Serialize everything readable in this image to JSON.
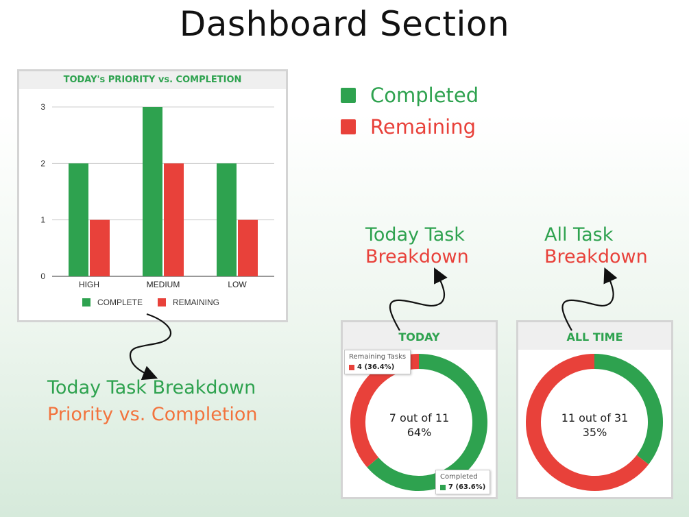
{
  "page": {
    "title": "Dashboard Section"
  },
  "legend": {
    "completed": {
      "label": "Completed",
      "color": "#2ea24f"
    },
    "remaining": {
      "label": "Remaining",
      "color": "#e8413a"
    }
  },
  "captions": {
    "today_chart_line1": "Today Task",
    "today_chart_line2": "Breakdown",
    "all_chart_line1": "All Task",
    "all_chart_line2": "Breakdown",
    "bar_line1": "Today Task Breakdown",
    "bar_line2": "Priority vs. Completion"
  },
  "chart_data": [
    {
      "type": "bar",
      "title": "TODAY's PRIORITY vs. COMPLETION",
      "categories": [
        "HIGH",
        "MEDIUM",
        "LOW"
      ],
      "series": [
        {
          "name": "COMPLETE",
          "values": [
            2,
            3,
            2
          ],
          "color": "#2ea24f"
        },
        {
          "name": "REMAINING",
          "values": [
            1,
            2,
            1
          ],
          "color": "#e8413a"
        }
      ],
      "ylim": [
        0,
        3
      ],
      "yticks": [
        "0",
        "1",
        "2",
        "3"
      ],
      "grid": true,
      "legend": "bottom"
    },
    {
      "type": "pie",
      "title": "TODAY",
      "values": [
        7,
        4
      ],
      "labels": [
        "Completed",
        "Remaining Tasks"
      ],
      "colors": [
        "#2ea24f",
        "#e8413a"
      ],
      "center_line1": "7 out of 11",
      "center_line2": "64%",
      "tooltips": {
        "remaining": {
          "title": "Remaining Tasks",
          "value": "4 (36.4%)"
        },
        "completed": {
          "title": "Completed",
          "value": "7 (63.6%)"
        }
      }
    },
    {
      "type": "pie",
      "title": "ALL TIME",
      "values": [
        11,
        20
      ],
      "colors": [
        "#2ea24f",
        "#e8413a"
      ],
      "center_line1": "11 out of 31",
      "center_line2": "35%"
    }
  ]
}
